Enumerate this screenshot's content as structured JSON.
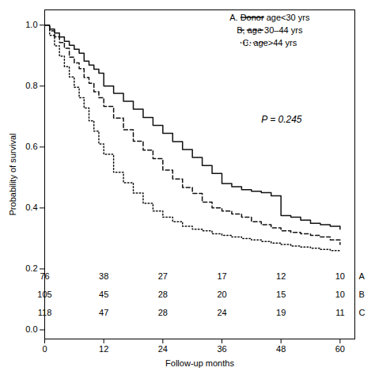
{
  "chart_data": {
    "type": "step",
    "xlabel": "Follow-up months",
    "ylabel": "Probability of survival",
    "x": [
      0,
      1,
      2,
      3,
      4,
      5,
      6,
      7,
      8,
      9,
      10,
      11,
      12,
      14,
      16,
      18,
      20,
      22,
      24,
      26,
      28,
      30,
      32,
      34,
      36,
      38,
      40,
      42,
      44,
      46,
      48,
      50,
      52,
      54,
      56,
      58,
      60
    ],
    "series": [
      {
        "name": "A. Donor age<30 yrs",
        "color": "#111111",
        "line_style": "solid",
        "values": [
          1.0,
          0.987,
          0.974,
          0.961,
          0.947,
          0.934,
          0.921,
          0.908,
          0.882,
          0.869,
          0.855,
          0.842,
          0.8,
          0.776,
          0.75,
          0.724,
          0.697,
          0.671,
          0.645,
          0.618,
          0.592,
          0.566,
          0.539,
          0.513,
          0.48,
          0.47,
          0.46,
          0.455,
          0.45,
          0.44,
          0.375,
          0.37,
          0.36,
          0.35,
          0.345,
          0.34,
          0.33
        ]
      },
      {
        "name": "B, age 30–44 yrs",
        "color": "#111111",
        "line_style": "dashed",
        "values": [
          1.0,
          0.981,
          0.962,
          0.943,
          0.924,
          0.895,
          0.876,
          0.857,
          0.828,
          0.809,
          0.781,
          0.762,
          0.733,
          0.695,
          0.657,
          0.619,
          0.59,
          0.562,
          0.524,
          0.495,
          0.467,
          0.448,
          0.419,
          0.4,
          0.39,
          0.38,
          0.37,
          0.355,
          0.345,
          0.335,
          0.325,
          0.32,
          0.315,
          0.31,
          0.305,
          0.295,
          0.28
        ]
      },
      {
        "name": "C. age>44 yrs",
        "color": "#111111",
        "line_style": "dotted",
        "values": [
          1.0,
          0.966,
          0.932,
          0.898,
          0.864,
          0.83,
          0.796,
          0.762,
          0.728,
          0.686,
          0.652,
          0.61,
          0.576,
          0.517,
          0.483,
          0.449,
          0.415,
          0.39,
          0.37,
          0.355,
          0.34,
          0.33,
          0.325,
          0.315,
          0.31,
          0.305,
          0.3,
          0.295,
          0.29,
          0.285,
          0.28,
          0.275,
          0.272,
          0.268,
          0.264,
          0.26,
          0.256
        ]
      }
    ],
    "xlim": [
      0,
      63
    ],
    "ylim": [
      -0.03,
      1.05
    ],
    "xticks": [
      0,
      12,
      24,
      36,
      48,
      60
    ],
    "yticks": [
      {
        "value": 0,
        "label": "0.0"
      },
      0.2,
      0.4,
      0.6,
      0.8,
      {
        "value": 1,
        "label": "1.0"
      }
    ],
    "legend": "upper right",
    "annotations": [
      {
        "text": "P = 0.245",
        "x": 44,
        "y": 0.68
      }
    ],
    "at_risk": [
      {
        "name": "A",
        "y": 0.175,
        "times": [
          0,
          12,
          24,
          36,
          48,
          60
        ],
        "values": [
          76,
          38,
          27,
          17,
          12,
          10
        ]
      },
      {
        "name": "B",
        "y": 0.115,
        "times": [
          0,
          12,
          24,
          36,
          48,
          60
        ],
        "values": [
          105,
          45,
          28,
          20,
          15,
          10
        ]
      },
      {
        "name": "C",
        "y": 0.055,
        "times": [
          0,
          12,
          24,
          36,
          48,
          60
        ],
        "values": [
          118,
          47,
          28,
          24,
          19,
          11
        ]
      }
    ]
  }
}
